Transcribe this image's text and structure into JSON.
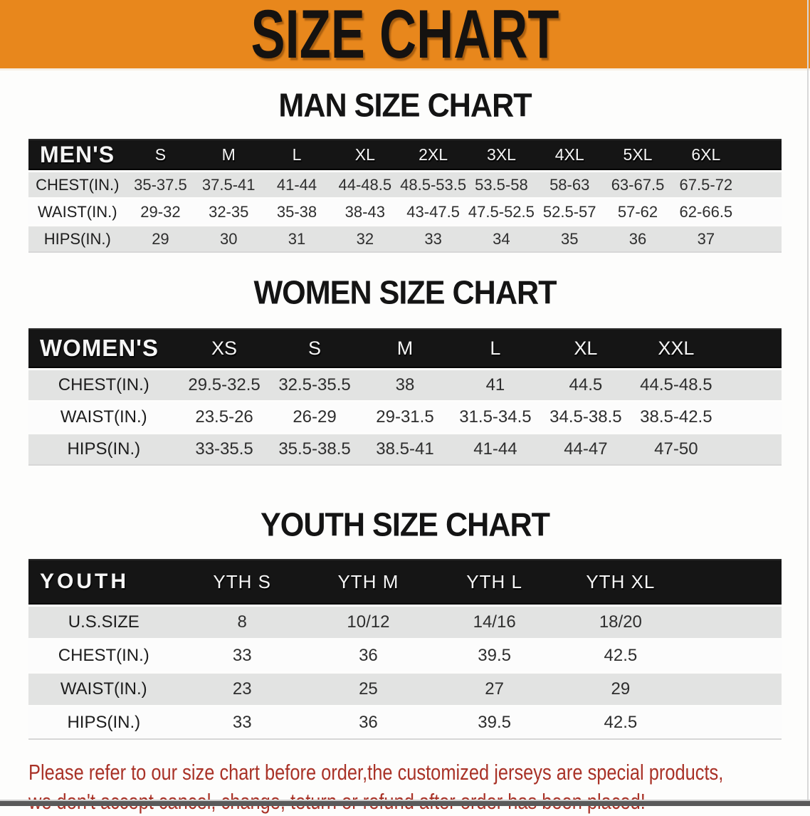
{
  "banner": {
    "title": "SIZE CHART"
  },
  "colors": {
    "banner_bg": "#E8871C",
    "table_header_bg": "#151515",
    "table_header_text": "#F5F5F5",
    "row_alt_bg": "#E2E3E2",
    "disclaimer_text": "#A93227",
    "bottom_bar": "#5A5A5A"
  },
  "sections": [
    {
      "id": "men",
      "heading": "MAN SIZE CHART",
      "table": {
        "label": "MEN'S",
        "sizes": [
          "S",
          "M",
          "L",
          "XL",
          "2XL",
          "3XL",
          "4XL",
          "5XL",
          "6XL"
        ],
        "rows": [
          {
            "label": "CHEST(IN.)",
            "values": [
              "35-37.5",
              "37.5-41",
              "41-44",
              "44-48.5",
              "48.5-53.5",
              "53.5-58",
              "58-63",
              "63-67.5",
              "67.5-72"
            ]
          },
          {
            "label": "WAIST(IN.)",
            "values": [
              "29-32",
              "32-35",
              "35-38",
              "38-43",
              "43-47.5",
              "47.5-52.5",
              "52.5-57",
              "57-62",
              "62-66.5"
            ]
          },
          {
            "label": "HIPS(IN.)",
            "values": [
              "29",
              "30",
              "31",
              "32",
              "33",
              "34",
              "35",
              "36",
              "37"
            ]
          }
        ]
      }
    },
    {
      "id": "women",
      "heading": "WOMEN SIZE CHART",
      "table": {
        "label": "WOMEN'S",
        "sizes": [
          "XS",
          "S",
          "M",
          "L",
          "XL",
          "XXL"
        ],
        "rows": [
          {
            "label": "CHEST(IN.)",
            "values": [
              "29.5-32.5",
              "32.5-35.5",
              "38",
              "41",
              "44.5",
              "44.5-48.5"
            ]
          },
          {
            "label": "WAIST(IN.)",
            "values": [
              "23.5-26",
              "26-29",
              "29-31.5",
              "31.5-34.5",
              "34.5-38.5",
              "38.5-42.5"
            ]
          },
          {
            "label": "HIPS(IN.)",
            "values": [
              "33-35.5",
              "35.5-38.5",
              "38.5-41",
              "41-44",
              "44-47",
              "47-50"
            ]
          }
        ]
      }
    },
    {
      "id": "youth",
      "heading": "YOUTH SIZE CHART",
      "table": {
        "label": "YOUTH",
        "sizes": [
          "YTH S",
          "YTH M",
          "YTH L",
          "YTH XL"
        ],
        "rows": [
          {
            "label": "U.S.SIZE",
            "values": [
              "8",
              "10/12",
              "14/16",
              "18/20"
            ]
          },
          {
            "label": "CHEST(IN.)",
            "values": [
              "33",
              "36",
              "39.5",
              "42.5"
            ]
          },
          {
            "label": "WAIST(IN.)",
            "values": [
              "23",
              "25",
              "27",
              "29"
            ]
          },
          {
            "label": "HIPS(IN.)",
            "values": [
              "33",
              "36",
              "39.5",
              "42.5"
            ]
          }
        ]
      }
    }
  ],
  "disclaimer": {
    "lines": [
      "Please refer to our size chart before order,the customized jerseys are special products,",
      "we don't accept cancel, change, teturn or refund after order has been placed!"
    ]
  }
}
